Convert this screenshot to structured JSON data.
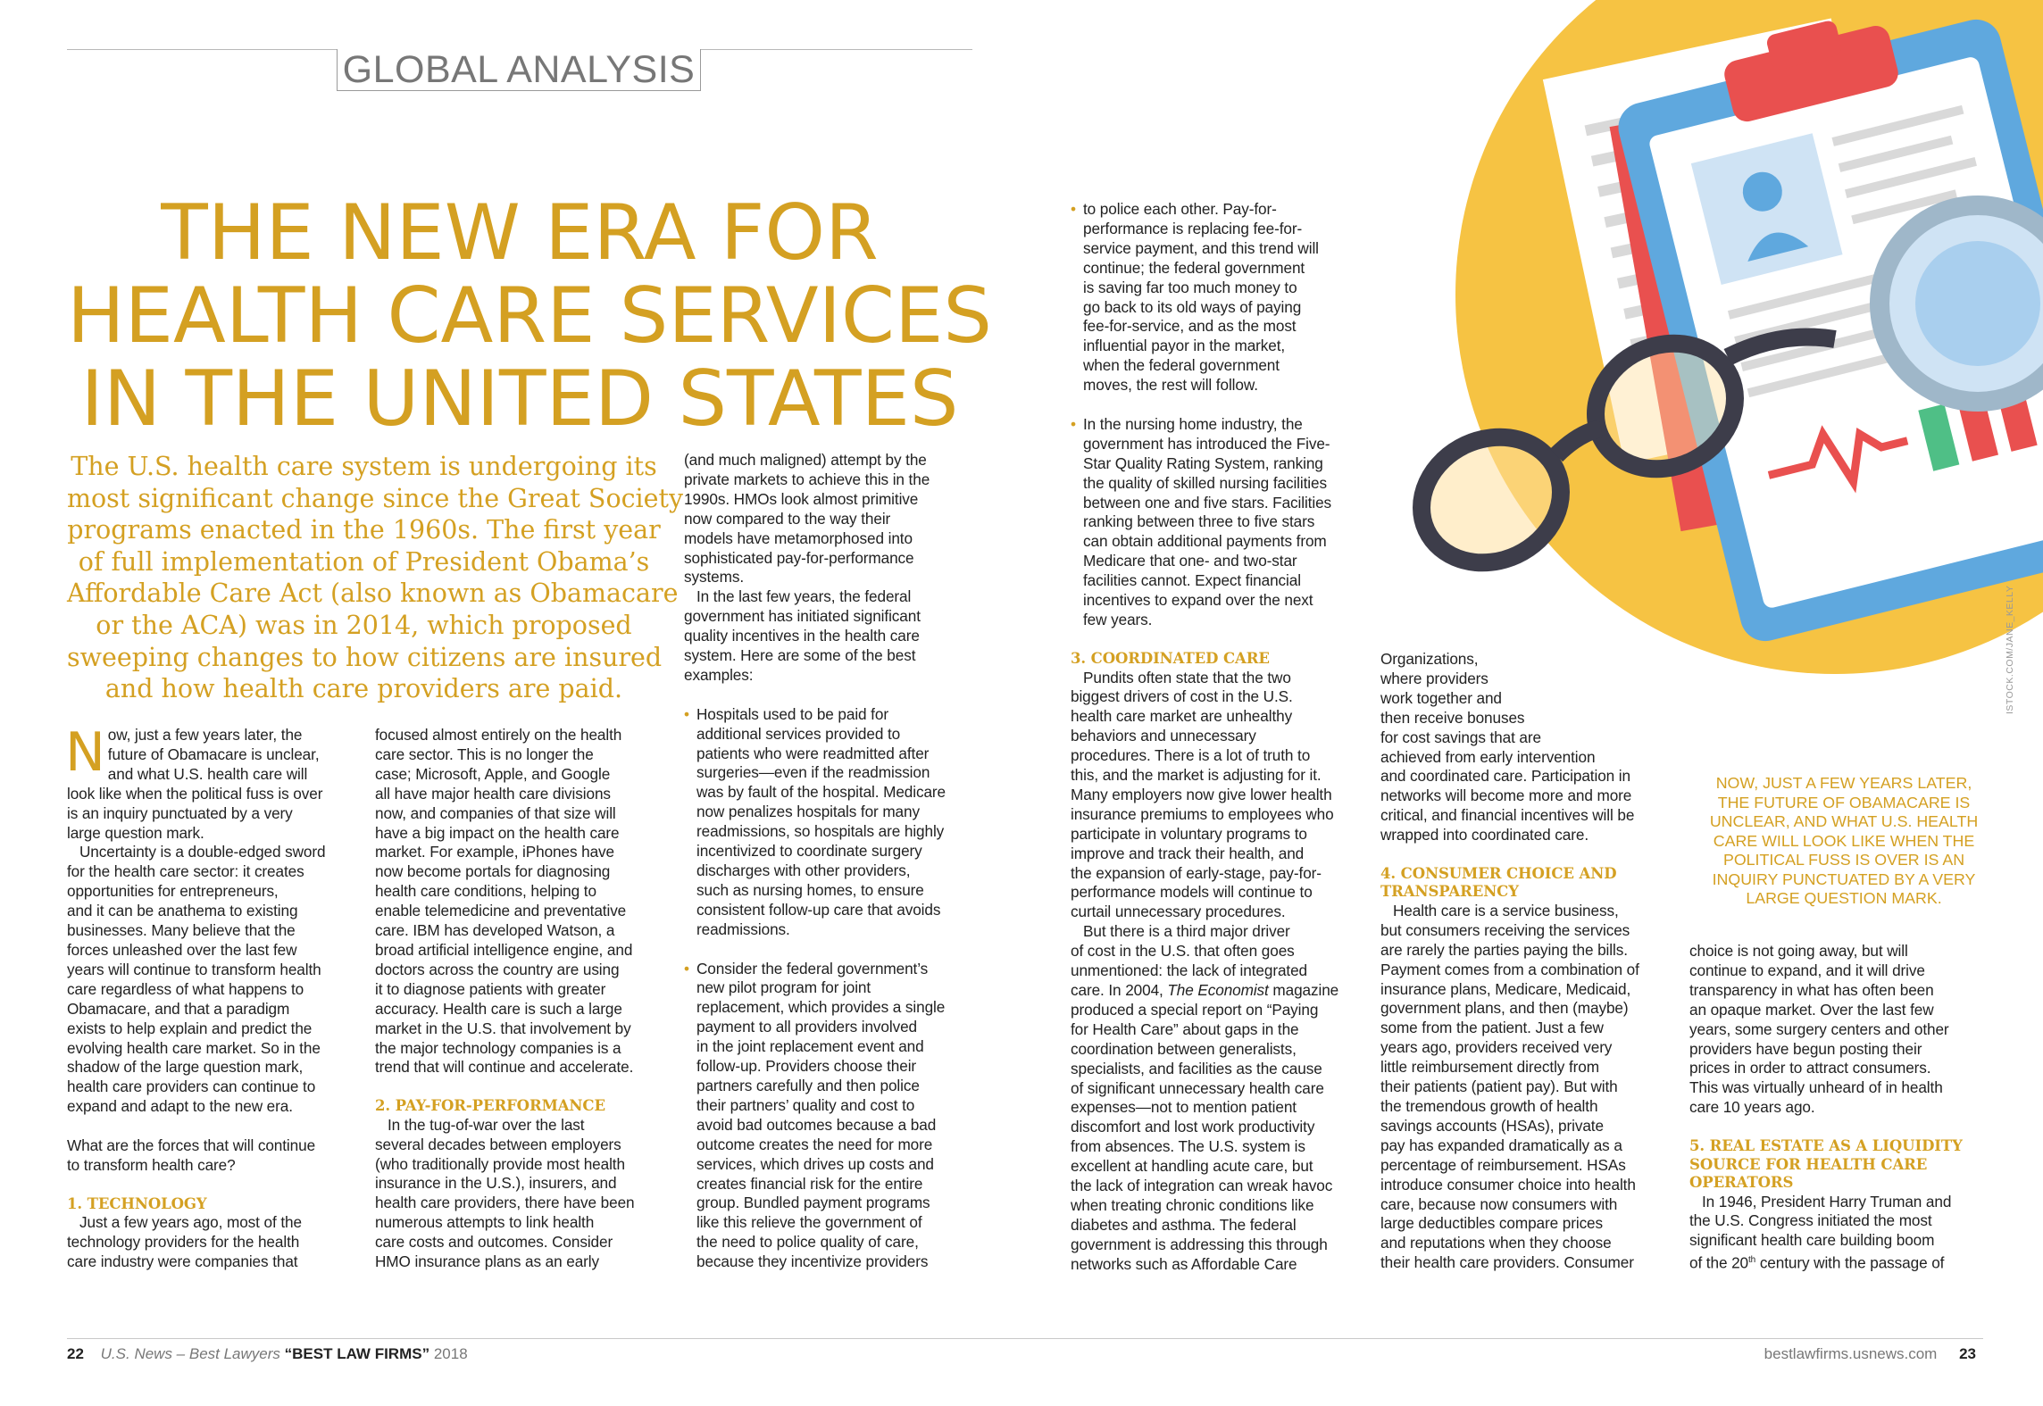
{
  "section_tag": "GLOBAL ANALYSIS",
  "title_lines": [
    "THE NEW ERA FOR",
    "HEALTH CARE SERVICES",
    "IN THE UNITED STATES"
  ],
  "deck_lines": [
    "The U.S. health care system is undergoing its",
    "most significant change since the Great Society",
    "programs enacted in the 1960s. The first year",
    "of full implementation of President Obama’s",
    "Affordable Care Act (also known as Obamacare",
    "or the ACA) was in 2014, which proposed",
    "sweeping changes to how citizens are insured",
    "and how health care providers are paid."
  ],
  "col1": {
    "dropcap": "N",
    "lead_lines": [
      "ow, just a few years later, the",
      "future of Obamacare is unclear,",
      "and what U.S. health care will"
    ],
    "para1_rest": [
      "look like when the political fuss is over",
      "is an inquiry punctuated by a very",
      "large question mark."
    ],
    "para2": [
      "Uncertainty is a double-edged sword",
      "for the health care sector: it creates",
      "opportunities for entrepreneurs,",
      "and it can be anathema to existing",
      "businesses. Many believe that the",
      "forces unleashed over the last few",
      "years will continue to transform health",
      "care regardless of what happens to",
      "Obamacare, and that a paradigm",
      "exists to help explain and predict the",
      "evolving health care market. So in the",
      "shadow of the large question mark,",
      "health care providers can continue to",
      "expand and adapt to the new era."
    ],
    "para3": [
      "What are the forces that will continue",
      "to transform health care?"
    ],
    "heading1": "1. TECHNOLOGY",
    "para4": [
      "Just a few years ago, most of the",
      "technology providers for the health",
      "care industry were companies that"
    ]
  },
  "col2": {
    "para1": [
      "focused almost entirely on the health",
      "care sector. This is no longer the",
      "case; Microsoft, Apple, and Google",
      "all have major health care divisions",
      "now, and companies of that size will",
      "have a big impact on the health care",
      "market. For example, iPhones have",
      "now become portals for diagnosing",
      "health care conditions, helping to",
      "enable telemedicine and preventative",
      "care. IBM has developed Watson, a",
      "broad artificial intelligence engine, and",
      "doctors across the country are using",
      "it to diagnose patients with greater",
      "accuracy. Health care is such a large",
      "market in the U.S. that involvement by",
      "the major technology companies is a",
      "trend that will continue and accelerate."
    ],
    "heading2": "2. PAY-FOR-PERFORMANCE",
    "para2": [
      "In the tug-of-war over the last",
      "several decades between employers",
      "(who traditionally provide most health",
      "insurance in the U.S.), insurers, and",
      "health care providers, there have been",
      "numerous attempts to link health",
      "care costs and outcomes. Consider",
      "HMO insurance plans as an early"
    ]
  },
  "col3": {
    "para1": [
      "(and much maligned) attempt by the",
      "private markets to achieve this in the",
      "1990s. HMOs look almost primitive",
      "now compared to the way their",
      "models have metamorphosed into",
      "sophisticated pay-for-performance",
      "systems."
    ],
    "para2": [
      "In the last few years, the federal",
      "government has initiated significant",
      "quality incentives in the health care",
      "system. Here are some of the best",
      "examples:"
    ],
    "bullet1": [
      "Hospitals used to be paid for",
      "additional services provided to",
      "patients who were readmitted after",
      "surgeries—even if the readmission",
      "was by fault of the hospital. Medicare",
      "now penalizes hospitals for many",
      "readmissions, so hospitals are highly",
      "incentivized to coordinate surgery",
      "discharges with other providers,",
      "such as nursing homes, to ensure",
      "consistent follow-up care that avoids",
      "readmissions."
    ],
    "bullet2": [
      "Consider the federal government’s",
      "new pilot program for joint",
      "replacement, which provides a single",
      "payment to all providers involved",
      "in the joint replacement event and",
      "follow-up. Providers choose their",
      "partners carefully and then police",
      "their partners’ quality and cost to",
      "avoid bad outcomes because a bad",
      "outcome creates the need for more",
      "services, which drives up costs and",
      "creates financial risk for the entire",
      "group. Bundled payment programs",
      "like this relieve the government of",
      "the need to police quality of care,",
      "because they incentivize providers"
    ]
  },
  "col4": {
    "para1": [
      "to police each other. Pay-for-",
      "performance is replacing fee-for-",
      "service payment, and this trend will",
      "continue; the federal government",
      "is saving far too much money to",
      "go back to its old ways of paying",
      "fee-for-service, and as the most",
      "influential payor in the market,",
      "when the federal government",
      "moves, the rest will follow."
    ],
    "bullet3": [
      "In the nursing home industry, the",
      "government has introduced the Five-",
      "Star Quality Rating System, ranking",
      "the quality of skilled nursing facilities",
      "between one and five stars. Facilities",
      "ranking between three to five stars",
      "can obtain additional payments from",
      "Medicare that one- and two-star",
      "facilities cannot. Expect financial",
      "incentives to expand over the next",
      "few years."
    ]
  },
  "col4b": {
    "heading3": "3. COORDINATED CARE",
    "para1": [
      "Pundits often state that the two",
      "biggest drivers of cost in the U.S.",
      "health care market are unhealthy",
      "behaviors and unnecessary",
      "procedures. There is a lot of truth to",
      "this, and the market is adjusting for it.",
      "Many employers now give lower health",
      "insurance premiums to employees who",
      "participate in voluntary programs to",
      "improve and track their health, and",
      "the expansion of early-stage, pay-for-",
      "performance models will continue to",
      "curtail unnecessary procedures."
    ],
    "para2_a": [
      "But there is a third major driver",
      "of cost in the U.S. that often goes",
      "unmentioned: the lack of integrated"
    ],
    "para2_b_pre": "care. In 2004, ",
    "para2_b_em": "The Economist",
    "para2_b_post": " magazine",
    "para2_c": [
      "produced a special report on “Paying",
      "for Health Care” about gaps in the",
      "coordination between generalists,",
      "specialists, and facilities as the cause",
      "of significant unnecessary health care",
      "expenses—not to mention patient",
      "discomfort and lost work productivity",
      "from absences. The U.S. system is",
      "excellent at handling acute care, but",
      "the lack of integration can wreak havoc",
      "when treating chronic conditions like",
      "diabetes and asthma. The federal",
      "government is addressing this through",
      "networks such as Affordable Care"
    ]
  },
  "col5": {
    "para1": [
      "Organizations,",
      "where providers",
      "work together and",
      "then receive bonuses",
      "for cost savings that are",
      "achieved from early intervention",
      "and coordinated care. Participation in",
      "networks will become more and more",
      "critical, and financial incentives will be",
      "wrapped into coordinated care."
    ],
    "heading4": [
      "4. CONSUMER CHOICE AND",
      "TRANSPARENCY"
    ],
    "para2": [
      "Health care is a service business,",
      "but consumers receiving the services",
      "are rarely the parties paying the bills.",
      "Payment comes from a combination of",
      "insurance plans, Medicare, Medicaid,",
      "government plans, and then (maybe)",
      "some from the patient. Just a few",
      "years ago, providers received very",
      "little reimbursement directly from",
      "their patients (patient pay). But with",
      "the tremendous growth of health",
      "savings accounts (HSAs), private",
      "pay has expanded dramatically as a",
      "percentage of reimbursement. HSAs",
      "introduce consumer choice into health",
      "care, because now consumers with",
      "large deductibles compare prices",
      "and reputations when they choose",
      "their health care providers. Consumer"
    ]
  },
  "pullquote": [
    "NOW, JUST A FEW YEARS LATER,",
    "THE FUTURE OF OBAMACARE IS",
    "UNCLEAR, AND WHAT U.S. HEALTH",
    "CARE WILL LOOK LIKE WHEN THE",
    "POLITICAL FUSS IS OVER IS AN",
    "INQUIRY PUNCTUATED BY A VERY",
    "LARGE QUESTION MARK."
  ],
  "col6": {
    "para1": [
      "choice is not going away, but will",
      "continue to expand, and it will drive",
      "transparency in what has often been",
      "an opaque market. Over the last few",
      "years, some surgery centers and other",
      "providers have begun posting their",
      "prices in order to attract consumers.",
      "This was virtually unheard of in health",
      "care 10 years ago."
    ],
    "heading5": [
      "5. REAL ESTATE AS A LIQUIDITY",
      "SOURCE FOR HEALTH CARE",
      "OPERATORS"
    ],
    "para2_a": [
      "In 1946, President Harry Truman and",
      "the U.S. Congress initiated the most",
      "significant health care building boom"
    ],
    "para2_b_pre": "of the 20",
    "para2_b_sup": "th",
    "para2_b_post": " century with the passage of"
  },
  "photo_credit": "ISTOCK.COM/JANE_KELLY",
  "footer": {
    "left_page": "22",
    "left_pub": "U.S. News – Best Lawyers",
    "left_title": "“BEST LAW FIRMS”",
    "left_year": "2018",
    "right_url": "bestlawfirms.usnews.com",
    "right_page": "23"
  },
  "colors": {
    "gold": "#d4a022",
    "yellow_bg": "#f6c343",
    "clipboard_blue": "#5fa8de",
    "red": "#e9504f",
    "green": "#4fbf86"
  }
}
